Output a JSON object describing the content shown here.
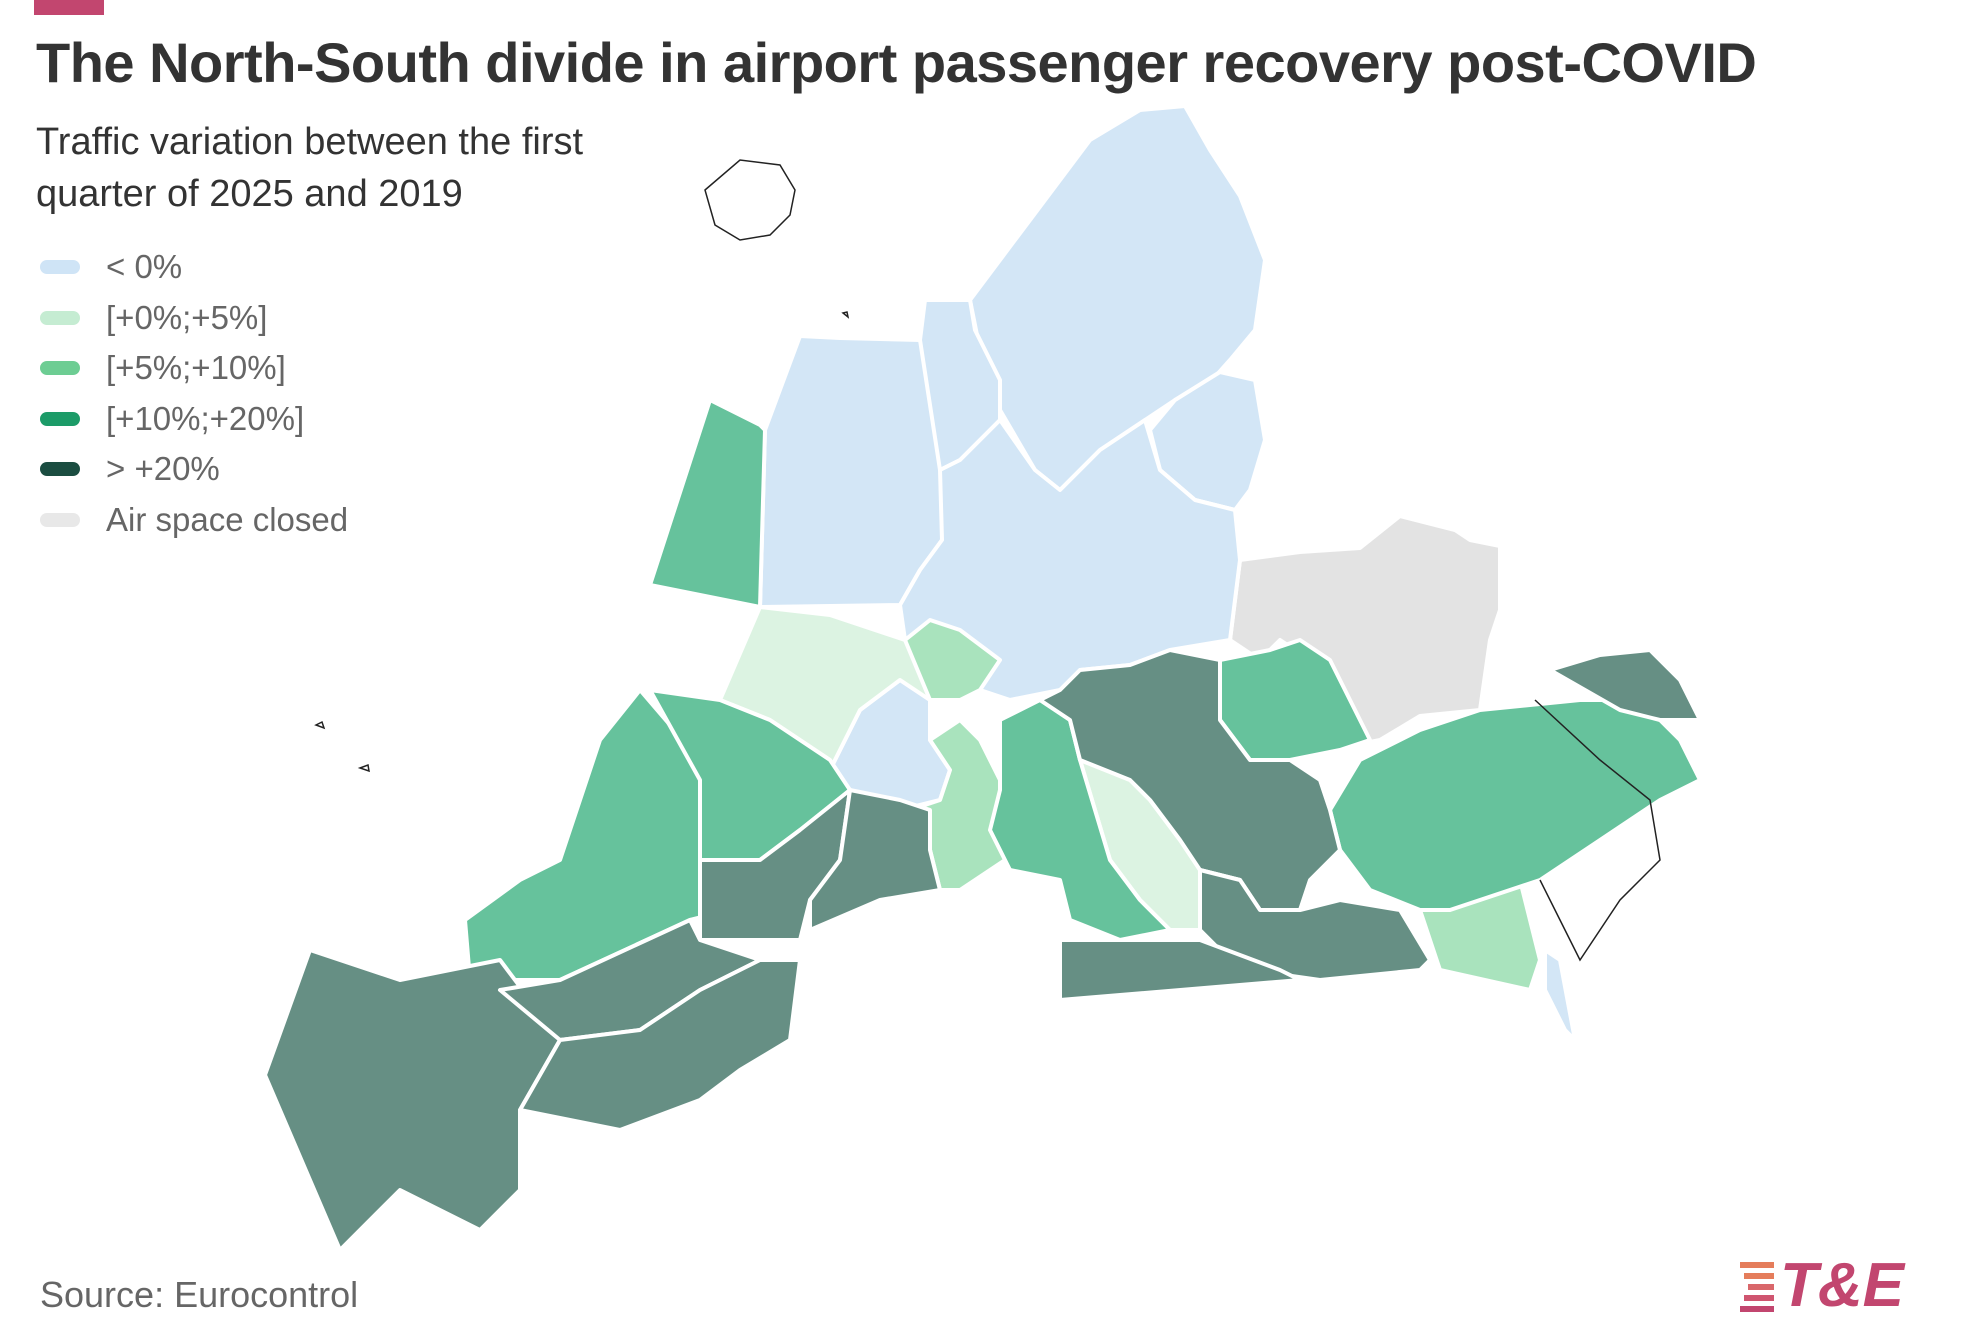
{
  "title": "The North-South divide in airport passenger recovery post-COVID",
  "subtitle": "Traffic variation between the first quarter of 2025 and 2019",
  "legend": [
    {
      "label": "< 0%",
      "color": "#cfe4f6"
    },
    {
      "label": "[+0%;+5%]",
      "color": "#c5ecd2"
    },
    {
      "label": "[+5%;+10%]",
      "color": "#6dcd93"
    },
    {
      "label": "[+10%;+20%]",
      "color": "#1c9b68"
    },
    {
      "label": "> +20%",
      "color": "#1b4d41"
    },
    {
      "label": "Air space closed",
      "color": "#e8e8e8"
    }
  ],
  "map_colors": {
    "below_zero": "#d3e6f6",
    "zero_to_five": "#dcf3e2",
    "five_to_ten_light": "#a9e3bd",
    "five_to_ten": "#66c29c",
    "ten_to_twenty": "#66c29c",
    "above_twenty": "#668f84",
    "closed": "#e3e3e3",
    "border": "#ffffff",
    "country_line": "#222222"
  },
  "source": "Source: Eurocontrol",
  "logo": {
    "text": "T&E",
    "color": "#c2466f",
    "accent": "#e57d5b"
  }
}
